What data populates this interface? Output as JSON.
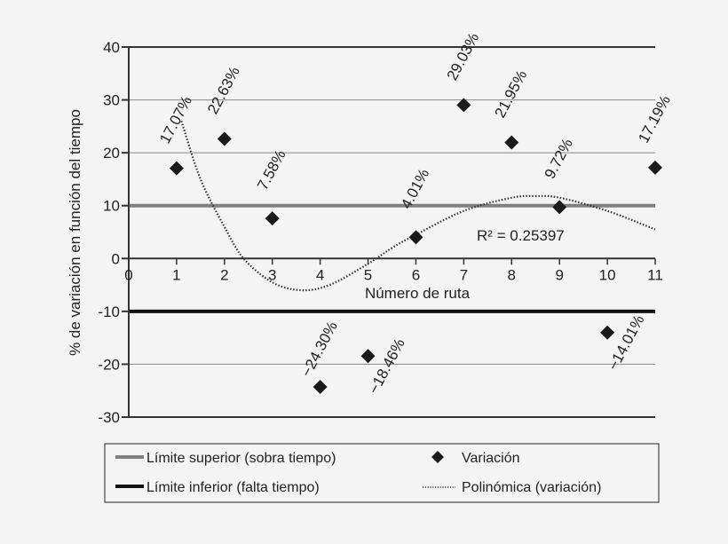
{
  "chart_data": {
    "type": "scatter",
    "xlabel": "Número de ruta",
    "ylabel": "% de variación en función del tiempo",
    "xlim": [
      0,
      11
    ],
    "ylim": [
      -30,
      40
    ],
    "xticks": [
      "0",
      "1",
      "2",
      "3",
      "4",
      "5",
      "6",
      "7",
      "8",
      "9",
      "10",
      "11"
    ],
    "yticks": [
      "40",
      "30",
      "20",
      "10",
      "0",
      "-10",
      "-20",
      "-30"
    ],
    "grid": true,
    "series": [
      {
        "name": "Variación",
        "marker": "diamond",
        "color": "#1a1a1a",
        "x": [
          1,
          2,
          3,
          4,
          5,
          6,
          7,
          8,
          9,
          10,
          11
        ],
        "y": [
          17.07,
          22.63,
          7.58,
          -24.3,
          -18.46,
          4.01,
          29.03,
          21.95,
          9.72,
          -14.01,
          17.19
        ],
        "labels": [
          "17.07%",
          "22.63%",
          "7.58%",
          "−24.30%",
          "−18.46%",
          "4.01%",
          "29.03%",
          "21.95%",
          "9.72%",
          "−14.01%",
          "17.19%"
        ]
      },
      {
        "name": "Polinómica (variación)",
        "type": "trendline",
        "style": "dotted",
        "color": "#333333",
        "x": [
          1.1,
          1.5,
          2,
          2.4,
          3,
          3.6,
          4.2,
          5,
          5.5,
          6,
          7,
          8,
          8.5,
          9,
          10,
          11
        ],
        "y": [
          26,
          15,
          6,
          0,
          -4.5,
          -6,
          -5,
          -1,
          2,
          4.5,
          9,
          11.5,
          11.8,
          11.5,
          9,
          5.5
        ]
      }
    ],
    "reference_lines": [
      {
        "name": "Límite superior (sobra tiempo)",
        "y": 10,
        "color": "#808080"
      },
      {
        "name": "Límite inferior (falta tiempo)",
        "y": -10,
        "color": "#111111"
      }
    ],
    "annotation": {
      "r2_label": "R² = 0.25397"
    },
    "legend": {
      "placement": "bottom",
      "items": [
        {
          "label": "Límite superior (sobra tiempo)"
        },
        {
          "label": "Variación"
        },
        {
          "label": "Límite inferior (falta tiempo)"
        },
        {
          "label": "Polinómica (variación)"
        }
      ]
    }
  }
}
